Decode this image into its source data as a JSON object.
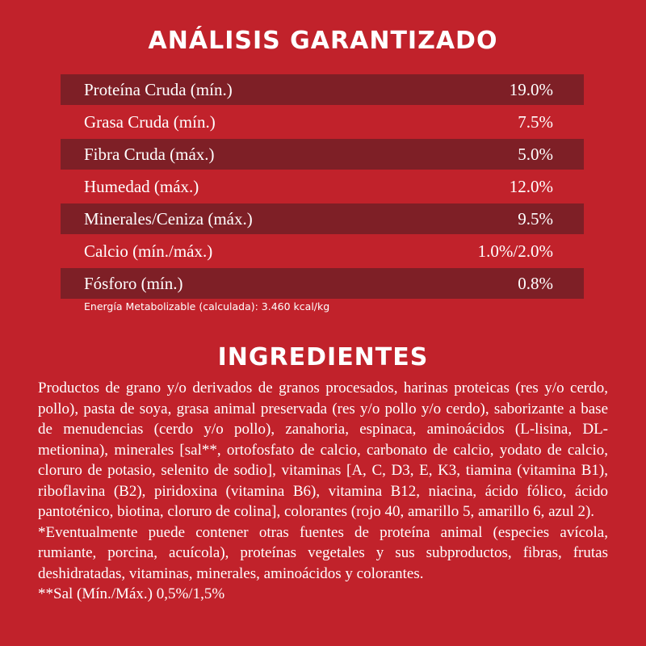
{
  "analysis": {
    "title": "ANÁLISIS GARANTIZADO",
    "rows": [
      {
        "label": "Proteína Cruda (mín.)",
        "value": "19.0%"
      },
      {
        "label": "Grasa Cruda (mín.)",
        "value": "7.5%"
      },
      {
        "label": "Fibra Cruda (máx.)",
        "value": "5.0%"
      },
      {
        "label": "Humedad (máx.)",
        "value": "12.0%"
      },
      {
        "label": "Minerales/Ceniza (máx.)",
        "value": "9.5%"
      },
      {
        "label": "Calcio (mín./máx.)",
        "value": "1.0%/2.0%"
      },
      {
        "label": "Fósforo (mín.)",
        "value": "0.8%"
      }
    ],
    "energy": "Energía Metabolizable (calculada): 3.460 kcal/kg"
  },
  "ingredients": {
    "title": "INGREDIENTES",
    "text": "Productos de grano y/o derivados de granos procesados, harinas proteicas (res y/o cerdo, pollo), pasta de soya, grasa animal preservada (res y/o pollo y/o cerdo), saborizante a base de menudencias (cerdo y/o pollo), zanahoria, espinaca, aminoácidos (L-lisina, DL-metionina), minerales [sal**, ortofosfato de calcio, carbonato de calcio, yodato de calcio, cloruro de potasio, selenito de sodio], vitaminas [A, C, D3, E, K3, tiamina (vitamina B1), riboflavina (B2), piridoxina (vitamina B6), vitamina B12, niacina, ácido fólico, ácido pantoténico, biotina, cloruro de colina], colorantes (rojo 40, amarillo 5, amarillo 6, azul 2).",
    "note": "*Eventualmente puede contener otras fuentes de proteína animal (especies avícola, rumiante, porcina, acuícola), proteínas vegetales y sus subproductos, fibras, frutas deshidratadas, vitaminas, minerales, aminoácidos y colorantes.",
    "salt": "**Sal (Mín./Máx.) 0,5%/1,5%"
  },
  "colors": {
    "background": "#c1222b",
    "row_dark": "#7e1f26",
    "text": "#ffffff"
  }
}
